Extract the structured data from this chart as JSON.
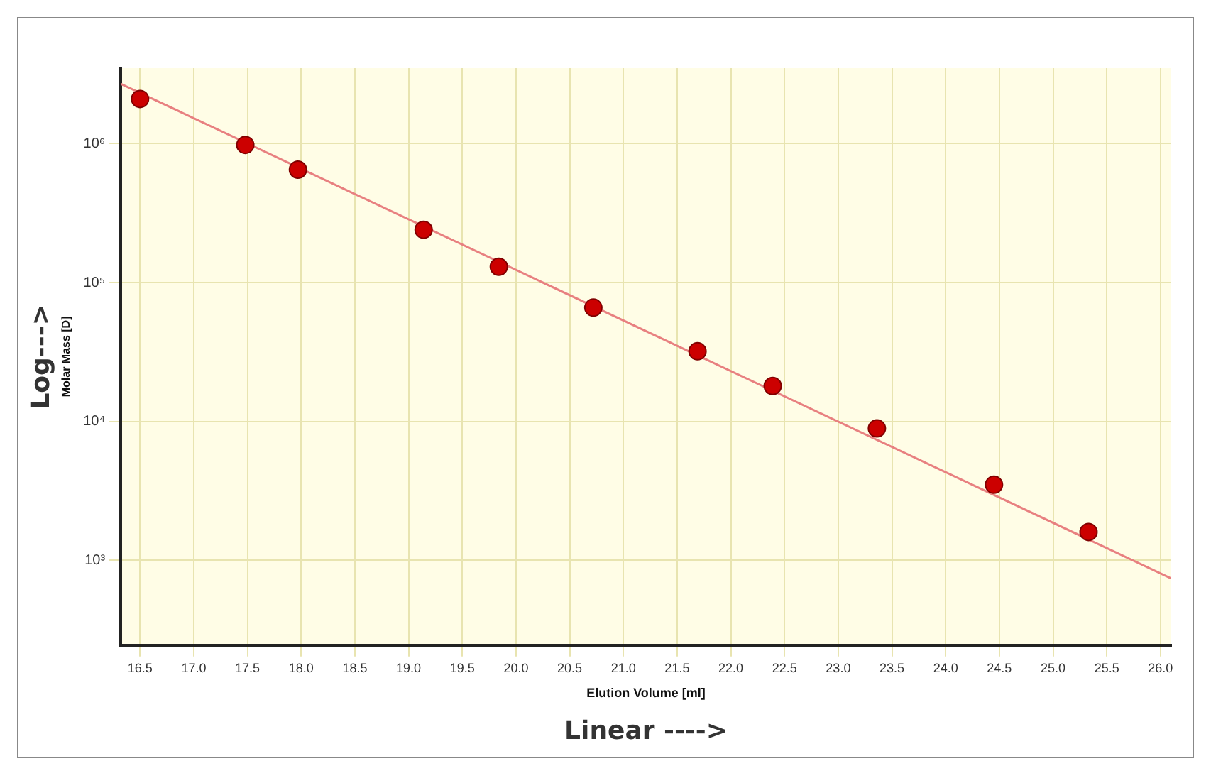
{
  "chart_data": {
    "type": "scatter",
    "xlabel": "Elution Volume [ml]",
    "ylabel": "Molar Mass [D]",
    "annotations": [
      "Log--->",
      "Linear ---->"
    ],
    "series": [
      {
        "marker": "circle",
        "color": "#cc0000",
        "x": [
          16.5,
          17.48,
          17.97,
          19.14,
          19.84,
          20.72,
          21.69,
          22.39,
          23.36,
          24.45,
          25.33
        ],
        "values": [
          2100000,
          980000,
          650000,
          240000,
          130000,
          66000,
          32000,
          18000,
          8900,
          3500,
          1600
        ]
      },
      {
        "type": "line",
        "marker": "none",
        "color": "#e88080",
        "x": [
          16.32,
          26.1
        ],
        "values": [
          2700000,
          740
        ]
      }
    ],
    "log": "y",
    "xlim": [
      16.32,
      26.1
    ],
    "ylim": [
      245,
      3500000
    ],
    "xticks": [
      16.5,
      {
        "value": 17,
        "label": "17.0"
      },
      17.5,
      {
        "value": 18,
        "label": "18.0"
      },
      18.5,
      {
        "value": 19,
        "label": "19.0"
      },
      19.5,
      {
        "value": 20,
        "label": "20.0"
      },
      20.5,
      {
        "value": 21,
        "label": "21.0"
      },
      21.5,
      {
        "value": 22,
        "label": "22.0"
      },
      22.5,
      {
        "value": 23,
        "label": "23.0"
      },
      23.5,
      {
        "value": 24,
        "label": "24.0"
      },
      24.5,
      {
        "value": 25,
        "label": "25.0"
      },
      25.5,
      {
        "value": 26,
        "label": "26.0"
      }
    ],
    "yticks": [
      {
        "value": 1000,
        "label": "10³"
      },
      {
        "value": 10000,
        "label": "10⁴"
      },
      {
        "value": 100000,
        "label": "10⁵"
      },
      {
        "value": 1000000,
        "label": "10⁶"
      }
    ],
    "grid": true,
    "line_style": "solid"
  }
}
